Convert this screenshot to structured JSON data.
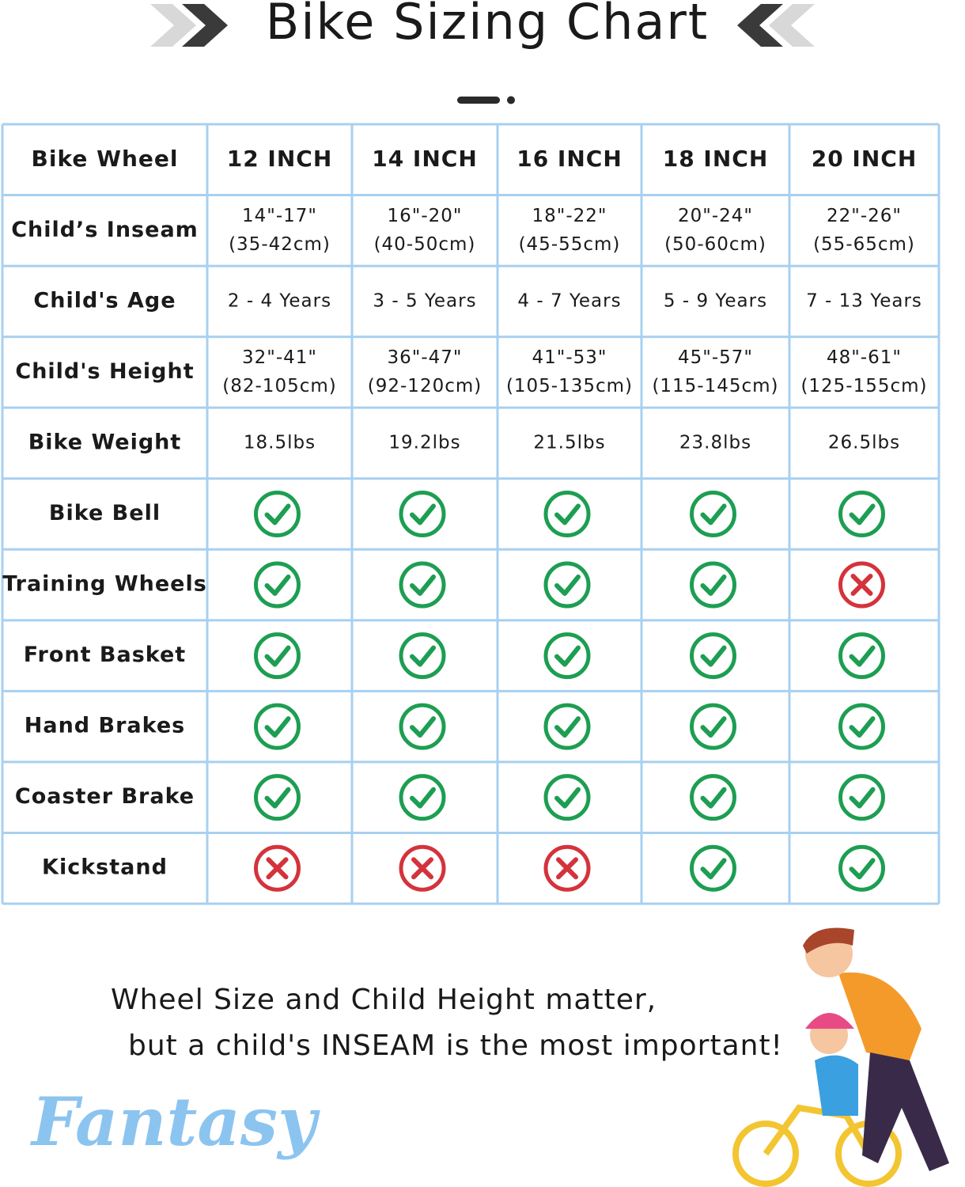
{
  "header": {
    "title": "Bike Sizing Chart"
  },
  "table": {
    "columns": [
      "Bike Wheel",
      "12 INCH",
      "14 INCH",
      "16 INCH",
      "18 INCH",
      "20 INCH"
    ],
    "rows": [
      {
        "label": "Child’s Inseam",
        "cells": [
          [
            "14\"-17\"",
            "(35-42cm)"
          ],
          [
            "16\"-20\"",
            "(40-50cm)"
          ],
          [
            "18\"-22\"",
            "(45-55cm)"
          ],
          [
            "20\"-24\"",
            "(50-60cm)"
          ],
          [
            "22\"-26\"",
            "(55-65cm)"
          ]
        ]
      },
      {
        "label": "Child's Age",
        "cells": [
          "2 - 4 Years",
          "3 - 5 Years",
          "4 - 7 Years",
          "5 - 9 Years",
          "7 - 13 Years"
        ]
      },
      {
        "label": "Child's Height",
        "cells": [
          [
            "32\"-41\"",
            "(82-105cm)"
          ],
          [
            "36\"-47\"",
            "(92-120cm)"
          ],
          [
            "41\"-53\"",
            "(105-135cm)"
          ],
          [
            "45\"-57\"",
            "(115-145cm)"
          ],
          [
            "48\"-61\"",
            "(125-155cm)"
          ]
        ]
      },
      {
        "label": "Bike Weight",
        "cells": [
          "18.5lbs",
          "19.2lbs",
          "21.5lbs",
          "23.8lbs",
          "26.5lbs"
        ]
      },
      {
        "label": "Bike Bell",
        "cells": [
          true,
          true,
          true,
          true,
          true
        ]
      },
      {
        "label": "Training Wheels",
        "cells": [
          true,
          true,
          true,
          true,
          false
        ]
      },
      {
        "label": "Front Basket",
        "cells": [
          true,
          true,
          true,
          true,
          true
        ]
      },
      {
        "label": "Hand Brakes",
        "cells": [
          true,
          true,
          true,
          true,
          true
        ]
      },
      {
        "label": "Coaster Brake",
        "cells": [
          true,
          true,
          true,
          true,
          true
        ]
      },
      {
        "label": "Kickstand",
        "cells": [
          false,
          false,
          false,
          true,
          true
        ]
      }
    ]
  },
  "footer": {
    "lines": [
      "Wheel Size and Child Height matter,",
      "but a child's INSEAM is the most important!"
    ],
    "brand": "Fantasy"
  }
}
